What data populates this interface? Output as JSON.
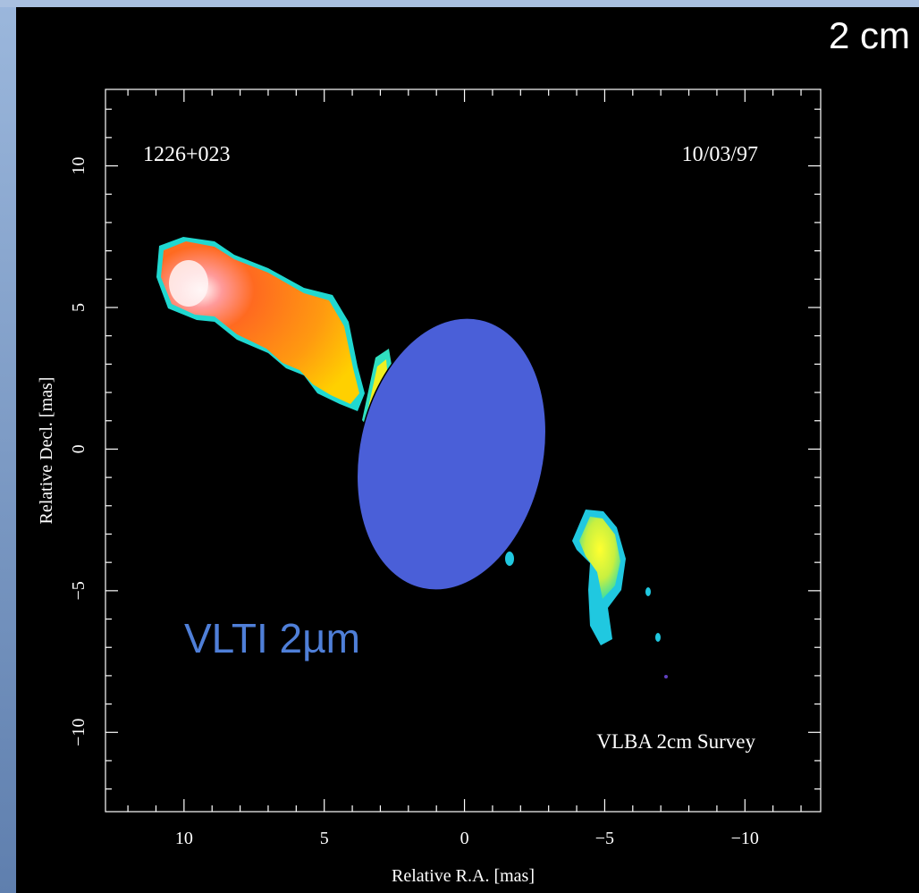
{
  "chart_data": {
    "type": "image",
    "slide_label": "2 cm",
    "source_name": "1226+023",
    "date": "10/03/97",
    "survey_label": "VLBA 2cm Survey",
    "overlay_label": "VLTI 2µm",
    "x_label": "Relative R.A. [mas]",
    "y_label": "Relative Decl. [mas]",
    "xlim": [
      12.8,
      -12.7
    ],
    "ylim": [
      -12.8,
      12.7
    ],
    "xticks": [
      10,
      5,
      0,
      {
        "value": -5,
        "label": "−5"
      },
      {
        "value": -10,
        "label": "−10"
      }
    ],
    "yticks": [
      {
        "value": -10,
        "label": "−10"
      },
      {
        "value": -5,
        "label": "−5"
      },
      0,
      5,
      10
    ]
  }
}
